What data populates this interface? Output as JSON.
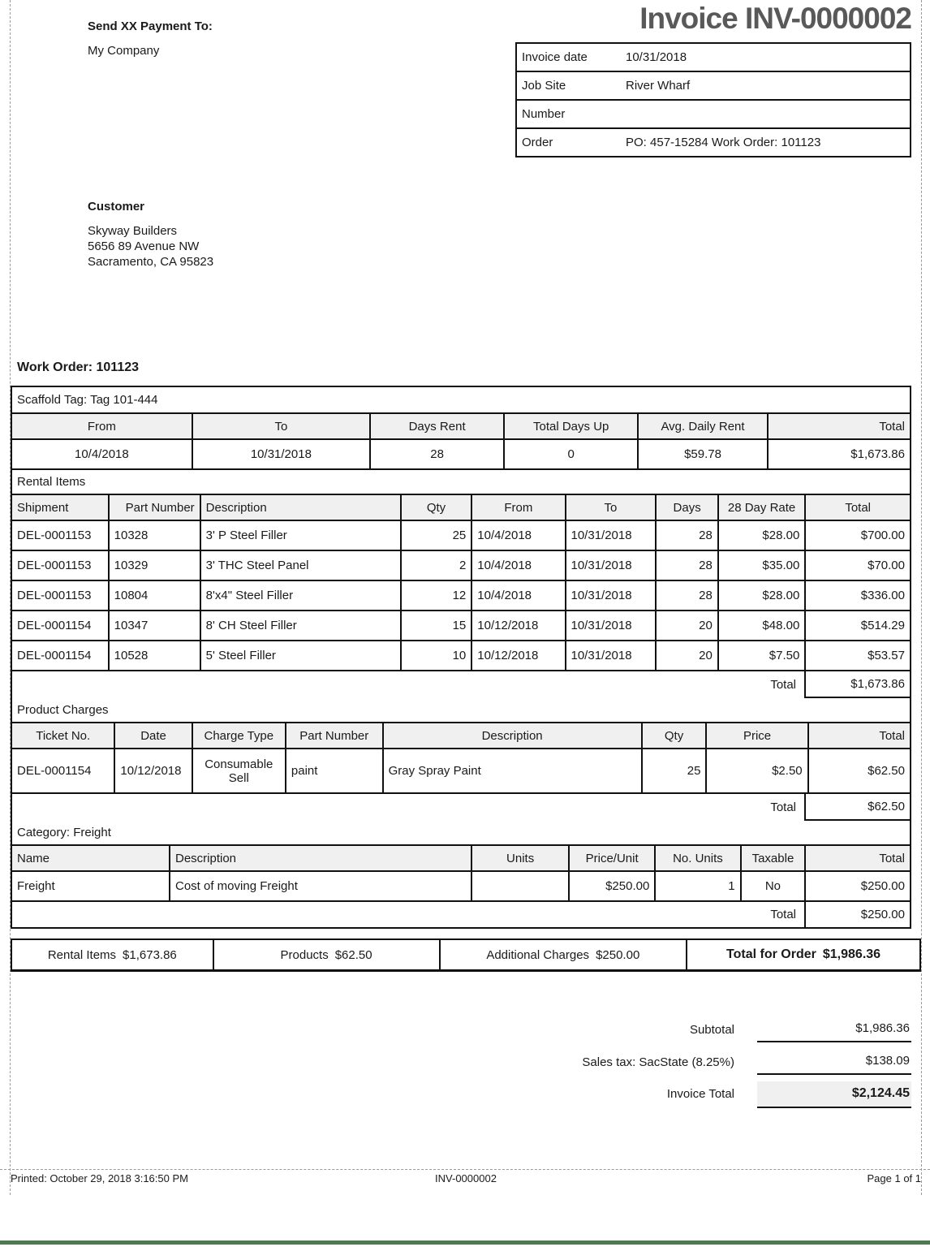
{
  "header": {
    "payment_to_label": "Send XX Payment To:",
    "payment_to_name": "My Company",
    "title": "Invoice INV-0000002"
  },
  "invoice_info": {
    "rows": [
      {
        "label": "Invoice date",
        "value": "10/31/2018"
      },
      {
        "label": "Job Site",
        "value": "River Wharf"
      },
      {
        "label": "Number",
        "value": ""
      },
      {
        "label": "Order",
        "value": "PO: 457-15284 Work Order: 101123"
      }
    ]
  },
  "customer": {
    "heading": "Customer",
    "lines": [
      "Skyway Builders",
      "5656 89 Avenue NW",
      "Sacramento, CA 95823"
    ]
  },
  "work_order_heading": "Work Order: 101123",
  "scaffold": {
    "tag_label": "Scaffold Tag: Tag 101-444",
    "headers": [
      "From",
      "To",
      "Days Rent",
      "Total Days Up",
      "Avg. Daily Rent",
      "Total"
    ],
    "rows": [
      [
        "10/4/2018",
        "10/31/2018",
        "28",
        "0",
        "$59.78",
        "$1,673.86"
      ]
    ]
  },
  "rental": {
    "section_label": "Rental Items",
    "headers": [
      "Shipment",
      "Part Number",
      "Description",
      "Qty",
      "From",
      "To",
      "Days",
      "28 Day Rate",
      "Total"
    ],
    "rows": [
      [
        "DEL-0001153",
        "10328",
        "3' P Steel Filler",
        "25",
        "10/4/2018",
        "10/31/2018",
        "28",
        "$28.00",
        "$700.00"
      ],
      [
        "DEL-0001153",
        "10329",
        "3' THC Steel Panel",
        "2",
        "10/4/2018",
        "10/31/2018",
        "28",
        "$35.00",
        "$70.00"
      ],
      [
        "DEL-0001153",
        "10804",
        "8'x4\" Steel Filler",
        "12",
        "10/4/2018",
        "10/31/2018",
        "28",
        "$28.00",
        "$336.00"
      ],
      [
        "DEL-0001154",
        "10347",
        "8' CH Steel Filler",
        "15",
        "10/12/2018",
        "10/31/2018",
        "20",
        "$48.00",
        "$514.29"
      ],
      [
        "DEL-0001154",
        "10528",
        "5' Steel Filler",
        "10",
        "10/12/2018",
        "10/31/2018",
        "20",
        "$7.50",
        "$53.57"
      ]
    ],
    "total_label": "Total",
    "total_value": "$1,673.86"
  },
  "product_charges": {
    "section_label": "Product Charges",
    "headers": [
      "Ticket No.",
      "Date",
      "Charge Type",
      "Part Number",
      "Description",
      "Qty",
      "Price",
      "Total"
    ],
    "rows": [
      [
        "DEL-0001154",
        "10/12/2018",
        "Consumable Sell",
        "paint",
        "Gray Spray Paint",
        "25",
        "$2.50",
        "$62.50"
      ]
    ],
    "total_label": "Total",
    "total_value": "$62.50"
  },
  "freight": {
    "section_label": "Category: Freight",
    "headers": [
      "Name",
      "Description",
      "Units",
      "Price/Unit",
      "No. Units",
      "Taxable",
      "Total"
    ],
    "rows": [
      [
        "Freight",
        "Cost of moving Freight",
        "",
        "$250.00",
        "1",
        "No",
        "$250.00"
      ]
    ],
    "total_label": "Total",
    "total_value": "$250.00"
  },
  "order_summary": {
    "cells": [
      {
        "label": "Rental Items",
        "value": "$1,673.86"
      },
      {
        "label": "Products",
        "value": "$62.50"
      },
      {
        "label": "Additional Charges",
        "value": "$250.00"
      },
      {
        "label": "Total for Order",
        "value": "$1,986.36"
      }
    ]
  },
  "totals": {
    "subtotal_label": "Subtotal",
    "subtotal_value": "$1,986.36",
    "tax_label": "Sales tax: SacState (8.25%)",
    "tax_value": "$138.09",
    "invoice_total_label": "Invoice Total",
    "invoice_total_value": "$2,124.45"
  },
  "footer": {
    "printed": "Printed: October 29, 2018 3:16:50 PM",
    "doc_number": "INV-0000002",
    "page": "Page 1 of 1"
  },
  "colors": {
    "title_gray": "#595959",
    "table_header_bg": "#f0f0f0",
    "table_border": "#111111",
    "accent_green": "#4d7a4f",
    "margin_guide_gray": "#9a9a9a"
  }
}
